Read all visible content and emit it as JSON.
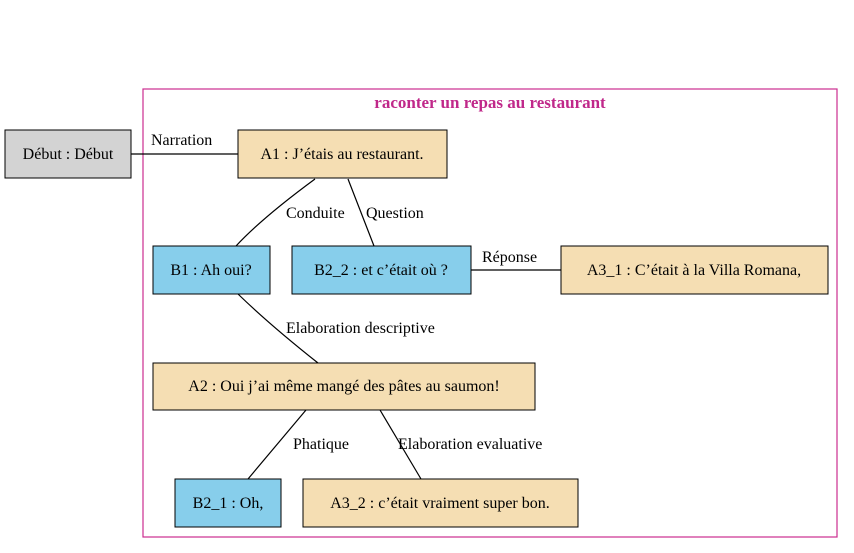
{
  "cluster": {
    "title": "raconter un repas au restaurant",
    "border_color": "#cc2d8f"
  },
  "colors": {
    "gray": "#d3d3d3",
    "tan": "#f5deb3",
    "blue": "#87ceeb"
  },
  "nodes": {
    "debut": {
      "label": "Début : Début",
      "color": "gray"
    },
    "a1": {
      "label": "A1 : J’étais au restaurant.",
      "color": "tan"
    },
    "b1": {
      "label": "B1 : Ah oui?",
      "color": "blue"
    },
    "b2_2": {
      "label": "B2_2 : et c’était où ?",
      "color": "blue"
    },
    "a3_1": {
      "label": "A3_1 : C’était à la Villa Romana,",
      "color": "tan"
    },
    "a2": {
      "label": "A2 : Oui j’ai même mangé des pâtes au saumon!",
      "color": "tan"
    },
    "b2_1": {
      "label": "B2_1 : Oh,",
      "color": "blue"
    },
    "a3_2": {
      "label": "A3_2 : c’était vraiment super bon.",
      "color": "tan"
    }
  },
  "edges": {
    "narration": {
      "from": "Début : Début",
      "to": "A1 : J’étais au restaurant.",
      "label": "Narration"
    },
    "conduite": {
      "from": "A1 : J’étais au restaurant.",
      "to": "B1 : Ah oui?",
      "label": "Conduite"
    },
    "question": {
      "from": "A1 : J’étais au restaurant.",
      "to": "B2_2 : et c’était où ?",
      "label": "Question"
    },
    "reponse": {
      "from": "B2_2 : et c’était où ?",
      "to": "A3_1 : C’était à la Villa Romana,",
      "label": "Réponse"
    },
    "elaboration_descriptive": {
      "from": "B1 : Ah oui?",
      "to": "A2 : Oui j’ai même mangé des pâtes au saumon!",
      "label": "Elaboration descriptive"
    },
    "phatique": {
      "from": "A2 : Oui j’ai même mangé des pâtes au saumon!",
      "to": "B2_1 : Oh,",
      "label": "Phatique"
    },
    "elaboration_evaluative": {
      "from": "A2 : Oui j’ai même mangé des pâtes au saumon!",
      "to": "A3_2 : c’était vraiment super bon.",
      "label": "Elaboration evaluative"
    }
  }
}
